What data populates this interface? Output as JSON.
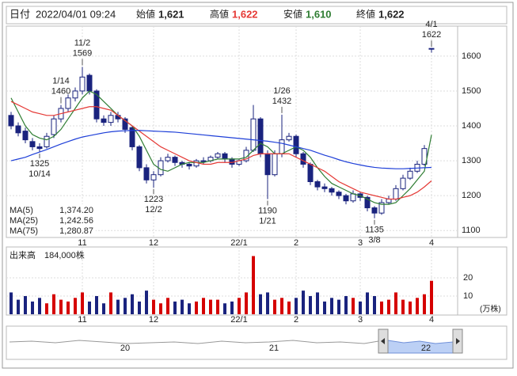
{
  "header": {
    "date_label": "日付",
    "datetime": "2022/04/01 09:24",
    "open_label": "始値",
    "open": "1,621",
    "high_label": "高値",
    "high": "1,622",
    "low_label": "安値",
    "low": "1,610",
    "close_label": "終値",
    "close": "1,622"
  },
  "chart_data": {
    "type": "candlestick",
    "categories": [
      null,
      null,
      null,
      null,
      null,
      null,
      null,
      null,
      null,
      null,
      "11",
      null,
      null,
      null,
      null,
      null,
      null,
      null,
      null,
      null,
      "12",
      null,
      null,
      null,
      null,
      null,
      null,
      null,
      null,
      null,
      null,
      null,
      "22/1",
      null,
      null,
      null,
      null,
      null,
      null,
      null,
      "2",
      null,
      null,
      null,
      null,
      null,
      null,
      null,
      null,
      "3",
      null,
      null,
      null,
      null,
      null,
      null,
      null,
      null,
      null,
      "4"
    ],
    "open": [
      1430,
      1400,
      1385,
      1355,
      1340,
      1340,
      1375,
      1420,
      1450,
      1480,
      1500,
      1545,
      1500,
      1420,
      1410,
      1430,
      1420,
      1395,
      1340,
      1280,
      1245,
      1260,
      1300,
      1310,
      1295,
      1290,
      1285,
      1300,
      1300,
      1310,
      1320,
      1305,
      1290,
      1300,
      1330,
      1420,
      1320,
      1260,
      1320,
      1360,
      1370,
      1320,
      1290,
      1240,
      1225,
      1220,
      1210,
      1200,
      1185,
      1205,
      1195,
      1165,
      1150,
      1180,
      1190,
      1220,
      1250,
      1270,
      1290,
      1621
    ],
    "high": [
      1440,
      1410,
      1395,
      1365,
      1350,
      1380,
      1430,
      1460,
      1490,
      1510,
      1569,
      1550,
      1505,
      1430,
      1440,
      1440,
      1425,
      1400,
      1345,
      1290,
      1270,
      1310,
      1320,
      1315,
      1300,
      1295,
      1305,
      1310,
      1315,
      1325,
      1325,
      1310,
      1305,
      1340,
      1460,
      1425,
      1330,
      1330,
      1432,
      1380,
      1375,
      1325,
      1295,
      1245,
      1235,
      1225,
      1215,
      1205,
      1215,
      1210,
      1200,
      1170,
      1190,
      1200,
      1230,
      1260,
      1280,
      1300,
      1345,
      1622
    ],
    "low": [
      1390,
      1370,
      1350,
      1330,
      1325,
      1335,
      1365,
      1410,
      1440,
      1470,
      1490,
      1490,
      1410,
      1400,
      1400,
      1410,
      1380,
      1330,
      1270,
      1235,
      1223,
      1255,
      1295,
      1285,
      1280,
      1275,
      1280,
      1290,
      1295,
      1305,
      1295,
      1280,
      1285,
      1295,
      1325,
      1310,
      1190,
      1255,
      1310,
      1355,
      1310,
      1280,
      1230,
      1215,
      1210,
      1200,
      1190,
      1175,
      1180,
      1185,
      1155,
      1135,
      1145,
      1175,
      1185,
      1215,
      1245,
      1265,
      1285,
      1610
    ],
    "close": [
      1400,
      1380,
      1360,
      1340,
      1335,
      1370,
      1420,
      1450,
      1480,
      1500,
      1540,
      1500,
      1420,
      1410,
      1430,
      1420,
      1390,
      1340,
      1280,
      1245,
      1260,
      1300,
      1310,
      1295,
      1290,
      1285,
      1300,
      1300,
      1310,
      1320,
      1305,
      1290,
      1300,
      1330,
      1420,
      1320,
      1260,
      1320,
      1360,
      1370,
      1320,
      1290,
      1240,
      1225,
      1220,
      1210,
      1200,
      1185,
      1205,
      1195,
      1165,
      1150,
      1180,
      1190,
      1220,
      1250,
      1270,
      1290,
      1335,
      1622
    ],
    "up_color": "#ffffff",
    "down_color": "#1a237e",
    "ylim": [
      1080,
      1686
    ],
    "yticks": [
      1100,
      1200,
      1300,
      1400,
      1500,
      1600
    ],
    "grid": true,
    "series": [
      {
        "name": "MA(5)",
        "color": "#2e7d32",
        "last_label": "1,374.20",
        "values": [
          1480,
          1440,
          1400,
          1375,
          1365,
          1360,
          1370,
          1390,
          1420,
          1450,
          1480,
          1500,
          1490,
          1470,
          1450,
          1430,
          1415,
          1400,
          1370,
          1330,
          1290,
          1275,
          1270,
          1280,
          1290,
          1295,
          1295,
          1295,
          1300,
          1305,
          1305,
          1305,
          1305,
          1310,
          1330,
          1350,
          1340,
          1320,
          1320,
          1330,
          1340,
          1330,
          1310,
          1280,
          1255,
          1235,
          1225,
          1215,
          1205,
          1200,
          1190,
          1180,
          1175,
          1175,
          1180,
          1200,
          1220,
          1245,
          1270,
          1374.2
        ]
      },
      {
        "name": "MA(25)",
        "color": "#e53935",
        "last_label": "1,242.56",
        "values": [
          1470,
          1460,
          1450,
          1440,
          1435,
          1430,
          1430,
          1435,
          1440,
          1445,
          1450,
          1455,
          1455,
          1450,
          1445,
          1430,
          1415,
          1400,
          1385,
          1370,
          1355,
          1340,
          1330,
          1320,
          1310,
          1300,
          1295,
          1290,
          1290,
          1295,
          1295,
          1295,
          1300,
          1305,
          1315,
          1320,
          1320,
          1320,
          1320,
          1320,
          1310,
          1300,
          1290,
          1280,
          1270,
          1255,
          1240,
          1230,
          1220,
          1210,
          1205,
          1200,
          1195,
          1190,
          1190,
          1195,
          1200,
          1210,
          1225,
          1242.56
        ]
      },
      {
        "name": "MA(75)",
        "color": "#1e3fd8",
        "last_label": "1,280.87",
        "values": [
          1300,
          1305,
          1310,
          1318,
          1325,
          1332,
          1340,
          1348,
          1355,
          1362,
          1368,
          1372,
          1376,
          1380,
          1383,
          1385,
          1386,
          1387,
          1387,
          1386,
          1385,
          1384,
          1383,
          1382,
          1380,
          1378,
          1376,
          1374,
          1372,
          1370,
          1368,
          1366,
          1364,
          1362,
          1360,
          1358,
          1356,
          1353,
          1350,
          1345,
          1340,
          1335,
          1330,
          1323,
          1316,
          1310,
          1303,
          1297,
          1292,
          1288,
          1284,
          1281,
          1279,
          1278,
          1277,
          1277,
          1278,
          1279,
          1280,
          1280.87
        ]
      }
    ],
    "annotations": [
      {
        "date": "11/2",
        "price": 1569,
        "side": "high"
      },
      {
        "date": "10/14",
        "price": 1325,
        "side": "low"
      },
      {
        "date": "12/2",
        "price": 1223,
        "side": "low"
      },
      {
        "date": "1/14",
        "price": 1460,
        "side": "high"
      },
      {
        "date": "1/26",
        "price": 1432,
        "side": "high"
      },
      {
        "date": "1/21",
        "price": 1190,
        "side": "low"
      },
      {
        "date": "3/8",
        "price": 1135,
        "side": "low"
      },
      {
        "date": "4/1",
        "price": 1622,
        "side": "high"
      }
    ],
    "volume": {
      "label": "出来高",
      "last": "184,000株",
      "unit": "(万株)",
      "ylim": [
        0,
        37
      ],
      "yticks": [
        10,
        20
      ],
      "up_color": "#d50000",
      "down_color": "#1a237e",
      "values": [
        12,
        8,
        10,
        7,
        9,
        6,
        11,
        8,
        7,
        9,
        12,
        7,
        10,
        6,
        12,
        8,
        9,
        11,
        7,
        13,
        8,
        6,
        9,
        7,
        8,
        6,
        7,
        9,
        8,
        8,
        6,
        7,
        9,
        12,
        32,
        11,
        12,
        8,
        9,
        7,
        9,
        13,
        10,
        12,
        7,
        9,
        8,
        10,
        9,
        7,
        12,
        10,
        7,
        8,
        12,
        8,
        7,
        9,
        11,
        18.4
      ]
    },
    "navigator": {
      "labels": [
        "20",
        "21",
        "22"
      ]
    }
  }
}
